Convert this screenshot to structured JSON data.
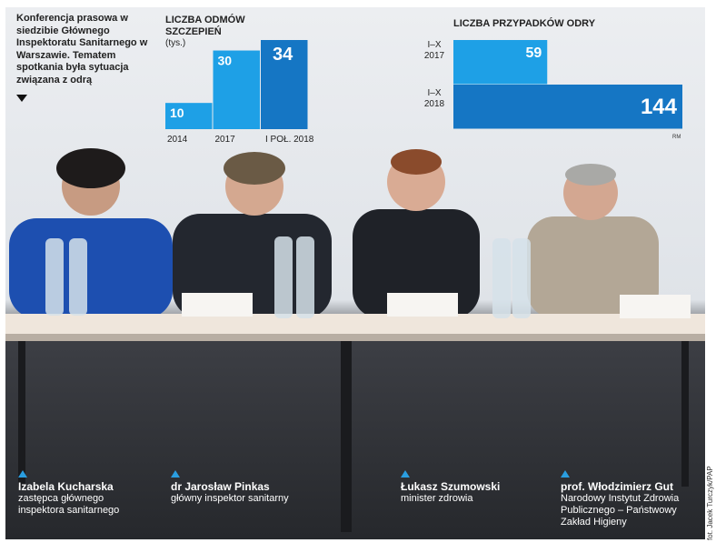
{
  "intro": "Konferencja prasowa w siedzibie Głównego Inspektoratu Sanitarnego w Warszawie. Tematem spotkania była sytuacja związana z odrą",
  "chart_data": [
    {
      "type": "bar",
      "title": "LICZBA ODMÓW SZCZEPIEŃ",
      "subtitle": "(tys.)",
      "categories": [
        "2014",
        "2017",
        "I POŁ. 2018"
      ],
      "values": [
        10,
        30,
        34
      ],
      "colors": [
        "#1ea0e6",
        "#1ea0e6",
        "#1576c4"
      ]
    },
    {
      "type": "hbar",
      "title": "LICZBA PRZYPADKÓW ODRY",
      "categories": [
        "I–X 2017",
        "I–X 2018"
      ],
      "values": [
        59,
        144
      ],
      "colors": [
        "#1ea0e6",
        "#1576c4"
      ],
      "source": "RM"
    }
  ],
  "people": [
    {
      "name": "Izabela Kucharska",
      "role": "zastępca głównego inspektora sanitarnego"
    },
    {
      "name": "dr Jarosław Pinkas",
      "role": "główny inspektor sanitarny"
    },
    {
      "name": "Łukasz Szumowski",
      "role": "minister zdrowia"
    },
    {
      "name": "prof. Włodzimierz Gut",
      "role": "Narodowy Instytut Zdrowia Publicznego – Państwowy Zakład Higieny"
    }
  ],
  "credit": "fot. Jacek Turczyk/PAP"
}
